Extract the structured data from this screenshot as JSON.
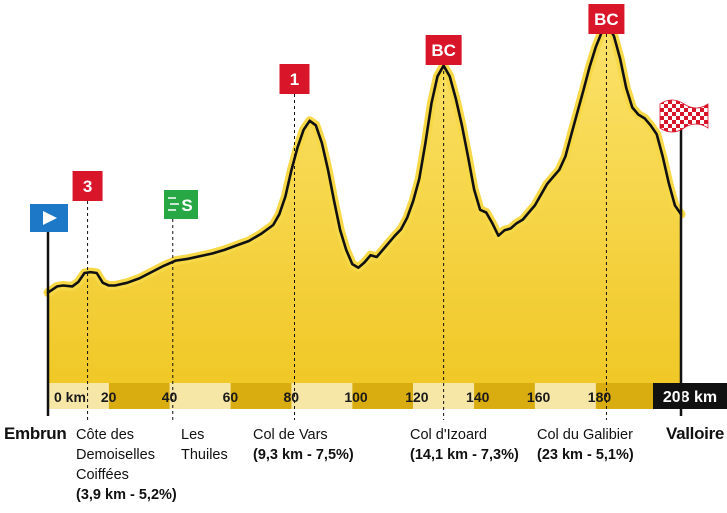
{
  "chart_data": {
    "type": "area",
    "xlabel": "",
    "ylabel": "",
    "xlim": [
      0,
      208
    ],
    "x_ticks": [
      {
        "value": 0,
        "label": "0 km"
      },
      {
        "value": 20,
        "label": "20"
      },
      {
        "value": 40,
        "label": "40"
      },
      {
        "value": 60,
        "label": "60"
      },
      {
        "value": 80,
        "label": "80"
      },
      {
        "value": 100,
        "label": "100"
      },
      {
        "value": 120,
        "label": "120"
      },
      {
        "value": 140,
        "label": "140"
      },
      {
        "value": 160,
        "label": "160"
      },
      {
        "value": 180,
        "label": "180"
      }
    ],
    "total_label": "208 km",
    "profile": {
      "x": [
        0,
        3,
        5,
        8,
        10,
        12,
        14,
        16,
        18,
        20,
        22,
        26,
        30,
        34,
        38,
        42,
        46,
        50,
        54,
        58,
        62,
        66,
        70,
        74,
        76,
        78,
        80,
        82,
        84,
        86,
        88,
        90,
        92,
        94,
        96,
        98,
        100,
        102,
        104,
        106,
        108,
        110,
        112,
        114,
        116,
        118,
        120,
        122,
        124,
        126,
        128,
        130,
        132,
        134,
        136,
        138,
        140,
        142,
        144,
        146,
        148,
        150,
        152,
        154,
        156,
        158,
        160,
        162,
        164,
        166,
        168,
        170,
        172,
        174,
        176,
        178,
        180,
        182,
        184,
        186,
        188,
        190,
        192,
        194,
        196,
        198,
        200,
        202,
        204,
        206,
        208
      ],
      "y": [
        0.42,
        0.49,
        0.5,
        0.49,
        0.54,
        0.64,
        0.65,
        0.64,
        0.53,
        0.5,
        0.5,
        0.53,
        0.58,
        0.65,
        0.72,
        0.78,
        0.8,
        0.83,
        0.86,
        0.9,
        0.95,
        1.0,
        1.08,
        1.18,
        1.3,
        1.5,
        1.8,
        2.05,
        2.25,
        2.35,
        2.3,
        2.1,
        1.8,
        1.45,
        1.12,
        0.9,
        0.74,
        0.7,
        0.76,
        0.84,
        0.82,
        0.9,
        0.98,
        1.06,
        1.13,
        1.26,
        1.45,
        1.7,
        2.1,
        2.55,
        2.85,
        2.97,
        2.85,
        2.6,
        2.3,
        1.95,
        1.58,
        1.35,
        1.32,
        1.2,
        1.06,
        1.12,
        1.14,
        1.2,
        1.24,
        1.32,
        1.4,
        1.52,
        1.64,
        1.72,
        1.8,
        1.95,
        2.2,
        2.45,
        2.7,
        2.96,
        3.18,
        3.35,
        3.42,
        3.3,
        3.05,
        2.72,
        2.5,
        2.42,
        2.38,
        2.3,
        2.2,
        1.95,
        1.65,
        1.4,
        1.3
      ]
    },
    "start": {
      "km": 0,
      "city": "Embrun"
    },
    "finish": {
      "km": 208,
      "city": "Valloire"
    },
    "climbs": [
      {
        "km": 13,
        "category": "3",
        "name": [
          "Côte des",
          "Demoiselles",
          "Coiffées"
        ],
        "stats": "(3,9 km - 5,2%)"
      },
      {
        "km": 81,
        "category": "1",
        "name": [
          "Col de Vars"
        ],
        "stats": "(9,3 km - 7,5%)"
      },
      {
        "km": 130,
        "category": "BC",
        "name": [
          "Col d'Izoard"
        ],
        "stats": "(14,1 km - 7,3%)"
      },
      {
        "km": 183.5,
        "category": "BC",
        "name": [
          "Col du Galibier"
        ],
        "stats": "(23 km - 5,1%)"
      }
    ],
    "sprint": {
      "km": 41,
      "category": "S",
      "name": [
        "Les",
        "Thuiles"
      ]
    },
    "colors": {
      "fill": "#f5d13a",
      "fill_light": "#fbe56a",
      "outline_glow": "#f7d948",
      "line": "#111111",
      "axis_band_dark": "#d9ad10",
      "axis_band_light": "#f6e7a7",
      "category_flag": "#d9152a",
      "sprint_flag": "#27a844",
      "start_flag": "#1e78c8",
      "total_box": "#111111"
    }
  }
}
